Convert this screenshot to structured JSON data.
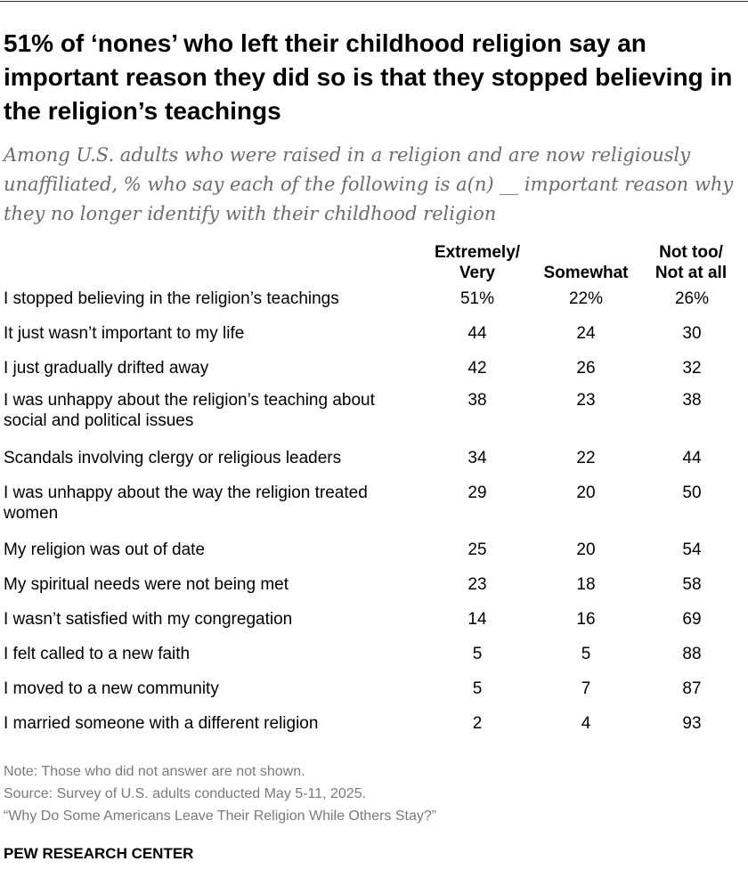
{
  "chart_data": {
    "type": "table",
    "title": "51% of ‘nones’ who left their childhood religion say an important reason they did so is that they stopped believing in the religion’s teachings",
    "subtitle": "Among U.S. adults who were raised in a religion and are now religiously unaffiliated, % who say each of the following is a(n) __ important reason why they no longer identify with their childhood religion",
    "columns": [
      {
        "line1": "Extremely/",
        "line2": "Very"
      },
      {
        "line1": "",
        "line2": "Somewhat"
      },
      {
        "line1": "Not too/",
        "line2": "Not at all"
      }
    ],
    "rows": [
      {
        "label": "I stopped believing in the religion’s teachings",
        "values": [
          "51%",
          "22%",
          "26%"
        ]
      },
      {
        "label": "It just wasn’t important to my life",
        "values": [
          "44",
          "24",
          "30"
        ]
      },
      {
        "label": "I just gradually drifted away",
        "values": [
          "42",
          "26",
          "32"
        ]
      },
      {
        "label": "I was unhappy about the religion’s teaching about social and political issues",
        "values": [
          "38",
          "23",
          "38"
        ]
      },
      {
        "label": "Scandals involving clergy or religious leaders",
        "values": [
          "34",
          "22",
          "44"
        ]
      },
      {
        "label": "I was unhappy about the way the religion treated women",
        "values": [
          "29",
          "20",
          "50"
        ]
      },
      {
        "label": "My religion was out of date",
        "values": [
          "25",
          "20",
          "54"
        ]
      },
      {
        "label": "My spiritual needs were not being met",
        "values": [
          "23",
          "18",
          "58"
        ]
      },
      {
        "label": "I wasn’t satisfied with my congregation",
        "values": [
          "14",
          "16",
          "69"
        ]
      },
      {
        "label": "I felt called to a new faith",
        "values": [
          "5",
          "5",
          "88"
        ]
      },
      {
        "label": "I moved to a new community",
        "values": [
          "5",
          "7",
          "87"
        ]
      },
      {
        "label": "I married someone with a different religion",
        "values": [
          "2",
          "4",
          "93"
        ]
      }
    ],
    "notes": [
      "Note: Those who did not answer are not shown.",
      "Source: Survey of U.S. adults conducted May 5-11, 2025.",
      "“Why Do Some Americans Leave Their Religion While Others Stay?”"
    ],
    "brand": "PEW RESEARCH CENTER"
  }
}
